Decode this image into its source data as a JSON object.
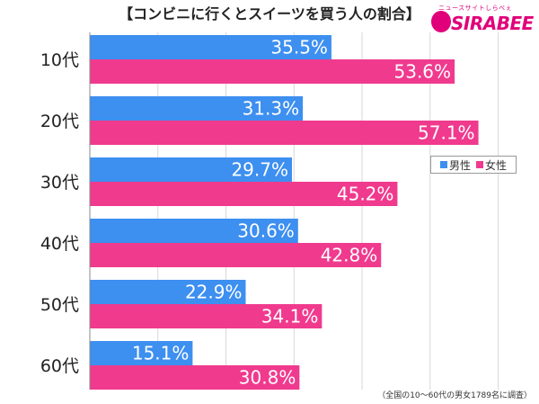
{
  "chart_data": {
    "type": "bar",
    "orientation": "horizontal",
    "title": "【コンビニに行くとスイーツを買う人の割合】",
    "categories": [
      "10代",
      "20代",
      "30代",
      "40代",
      "50代",
      "60代"
    ],
    "series": [
      {
        "name": "男性",
        "values": [
          35.5,
          31.3,
          29.7,
          30.6,
          22.9,
          15.1
        ],
        "labels": [
          "35.5%",
          "31.3%",
          "29.7%",
          "30.6%",
          "22.9%",
          "15.1%"
        ],
        "color": "#3d8ff0"
      },
      {
        "name": "女性",
        "values": [
          53.6,
          57.1,
          45.2,
          42.8,
          34.1,
          30.8
        ],
        "labels": [
          "53.6%",
          "57.1%",
          "45.2%",
          "42.8%",
          "34.1%",
          "30.8%"
        ],
        "color": "#f03a8e"
      }
    ],
    "xlim": [
      0,
      66
    ],
    "grid": true,
    "legend_position": "right"
  },
  "logo": {
    "tagline": "ニュースサイトしらべぇ",
    "name": "SIRABEE"
  },
  "footnote": "（全国の10〜60代の男女1789名に調査）"
}
